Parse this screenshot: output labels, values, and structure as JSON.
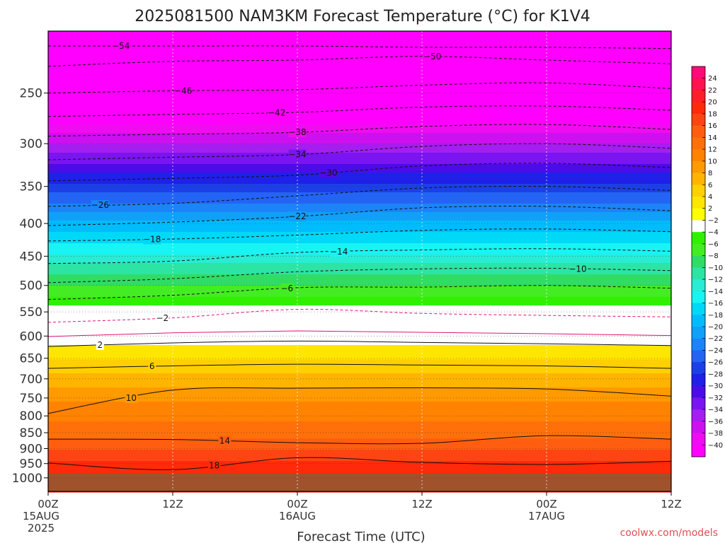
{
  "title": "2025081500 NAM3KM Forecast Temperature (°C) for K1V4",
  "credit": "coolwx.com/models",
  "chart_data": {
    "type": "heatmap",
    "title": "2025081500 NAM3KM Forecast Temperature (°C) for K1V4",
    "xlabel": "Forecast Time (UTC)",
    "ylabel": "",
    "y_scale": "log-pressure",
    "ylim": [
      1050,
      200
    ],
    "y_ticks": [
      250,
      300,
      350,
      400,
      450,
      500,
      550,
      600,
      650,
      700,
      750,
      800,
      850,
      900,
      950,
      1000
    ],
    "x_ticks": [
      {
        "line1": "00Z",
        "line2": "15AUG",
        "line3": "2025"
      },
      {
        "line1": "12Z",
        "line2": "",
        "line3": ""
      },
      {
        "line1": "00Z",
        "line2": "16AUG",
        "line3": ""
      },
      {
        "line1": "12Z",
        "line2": "",
        "line3": ""
      },
      {
        "line1": "00Z",
        "line2": "17AUG",
        "line3": ""
      },
      {
        "line1": "12Z",
        "line2": "",
        "line3": ""
      }
    ],
    "forecast_hours": [
      0,
      12,
      24,
      36,
      48,
      60
    ],
    "ground_pressure": 985,
    "colorbar_ticks": [
      24,
      22,
      20,
      18,
      16,
      14,
      12,
      10,
      8,
      6,
      4,
      2,
      -2,
      -4,
      -6,
      -8,
      -10,
      -12,
      -14,
      -16,
      -18,
      -20,
      -22,
      -24,
      -26,
      -28,
      -30,
      -32,
      -34,
      -36,
      -38,
      -40
    ],
    "colorbar_colors": [
      "#ff0a78",
      "#ff1450",
      "#ff1e28",
      "#ff2a0a",
      "#ff4414",
      "#ff5e10",
      "#ff700a",
      "#ff8200",
      "#ff9a00",
      "#ffb400",
      "#ffd000",
      "#ffe600",
      "#ffff00",
      "#ffffff",
      "#30f000",
      "#44ec24",
      "#30dc64",
      "#2ce4a4",
      "#28ecd4",
      "#18f4f4",
      "#00d8f8",
      "#00bcfc",
      "#10a0f8",
      "#1c84f8",
      "#2464f4",
      "#1c40e8",
      "#2020e8",
      "#4c0ce8",
      "#7a14f0",
      "#a41ef0",
      "#cc10f0",
      "#f00cf0",
      "#ff00ff"
    ],
    "contour_levels_labeled": [
      -54,
      -50,
      -46,
      -42,
      -38,
      -34,
      -30,
      -26,
      -22,
      -18,
      -14,
      -10,
      -6,
      -2,
      2,
      6,
      10,
      14,
      18
    ],
    "temperature_profile": [
      {
        "p": 1000,
        "t": 20
      },
      {
        "p": 950,
        "t": 18.5
      },
      {
        "p": 900,
        "t": 16
      },
      {
        "p": 850,
        "t": 13
      },
      {
        "p": 800,
        "t": 11.5
      },
      {
        "p": 750,
        "t": 9.5
      },
      {
        "p": 700,
        "t": 7
      },
      {
        "p": 650,
        "t": 4
      },
      {
        "p": 600,
        "t": 0.5
      },
      {
        "p": 550,
        "t": -3
      },
      {
        "p": 500,
        "t": -8
      },
      {
        "p": 450,
        "t": -13.5
      },
      {
        "p": 400,
        "t": -19.5
      },
      {
        "p": 350,
        "t": -27.5
      },
      {
        "p": 300,
        "t": -36
      },
      {
        "p": 250,
        "t": -46
      },
      {
        "p": 210,
        "t": -54
      }
    ],
    "contours": [
      {
        "level": -54,
        "pressure": [
          211,
          211,
          211,
          212,
          212,
          213
        ],
        "label_hour": 7
      },
      {
        "level": -50,
        "pressure": [
          227,
          223,
          222,
          219,
          222,
          225
        ],
        "label_hour": 37
      },
      {
        "level": -46,
        "pressure": [
          250,
          248,
          247,
          243,
          241,
          246
        ],
        "label_hour": 13
      },
      {
        "level": -42,
        "pressure": [
          272,
          270,
          268,
          263,
          262,
          266
        ],
        "label_hour": 22
      },
      {
        "level": -38,
        "pressure": [
          292,
          290,
          288,
          282,
          280,
          285
        ],
        "label_hour": 24
      },
      {
        "level": -34,
        "pressure": [
          318,
          315,
          312,
          303,
          300,
          305
        ],
        "label_hour": 24
      },
      {
        "level": -30,
        "pressure": [
          343,
          340,
          336,
          325,
          322,
          327
        ],
        "label_hour": 27
      },
      {
        "level": -26,
        "pressure": [
          376,
          372,
          362,
          352,
          350,
          355
        ],
        "label_hour": 5
      },
      {
        "level": -22,
        "pressure": [
          403,
          398,
          390,
          378,
          376,
          382
        ],
        "label_hour": 24
      },
      {
        "level": -18,
        "pressure": [
          426,
          423,
          417,
          410,
          408,
          412
        ],
        "label_hour": 10
      },
      {
        "level": -14,
        "pressure": [
          462,
          458,
          444,
          440,
          438,
          442
        ],
        "label_hour": 28
      },
      {
        "level": -10,
        "pressure": [
          495,
          488,
          476,
          471,
          470,
          474
        ],
        "label_hour": 51
      },
      {
        "level": -6,
        "pressure": [
          526,
          518,
          504,
          503,
          500,
          505
        ],
        "label_hour": 23
      },
      {
        "level": -2,
        "pressure": [
          571,
          562,
          545,
          553,
          557,
          560
        ],
        "label_hour": 11
      },
      {
        "level": 2,
        "pressure": [
          623,
          615,
          611,
          614,
          617,
          621
        ],
        "label_hour": 5
      },
      {
        "level": 6,
        "pressure": [
          674,
          668,
          664,
          666,
          668,
          674
        ],
        "label_hour": 10
      },
      {
        "level": 10,
        "pressure": [
          793,
          729,
          724,
          723,
          726,
          745
        ],
        "label_hour": 8
      },
      {
        "level": 14,
        "pressure": [
          870,
          871,
          881,
          883,
          859,
          870
        ],
        "label_hour": 17
      },
      {
        "level": 18,
        "pressure": [
          948,
          971,
          930,
          946,
          953,
          942
        ],
        "label_hour": 16
      }
    ]
  }
}
